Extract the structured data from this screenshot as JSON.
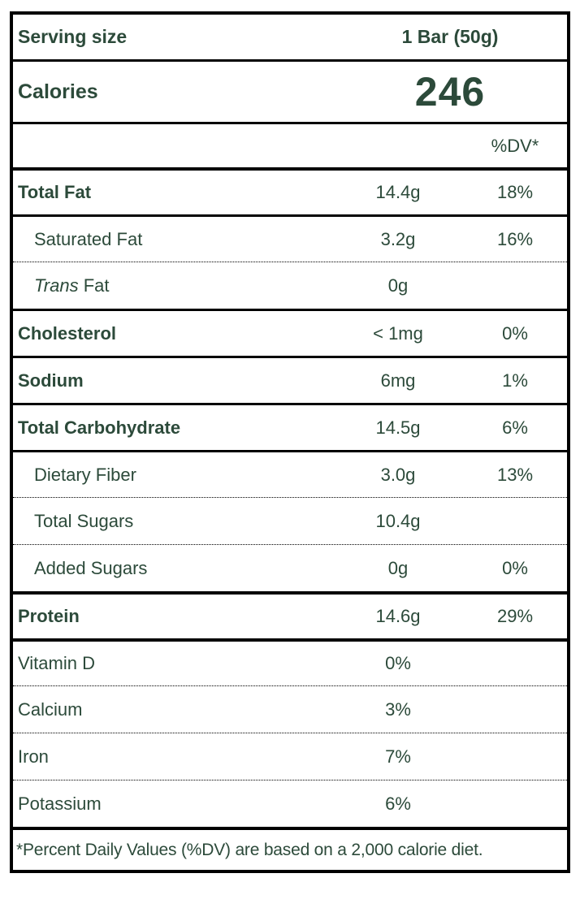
{
  "colors": {
    "text_green": "#2c4a3a",
    "line_black": "#000000",
    "background": "#ffffff"
  },
  "serving": {
    "label": "Serving size",
    "value": "1 Bar (50g)"
  },
  "calories": {
    "label": "Calories",
    "value": "246"
  },
  "dv_header": "%DV*",
  "rows": [
    {
      "label": "Total Fat",
      "amount": "14.4g",
      "dv": "18%"
    },
    {
      "label": "Saturated Fat",
      "amount": "3.2g",
      "dv": "16%"
    },
    {
      "label_italic": "Trans",
      "label_rest": " Fat",
      "amount": "0g",
      "dv": ""
    },
    {
      "label": "Cholesterol",
      "amount": "< 1mg",
      "dv": "0%"
    },
    {
      "label": "Sodium",
      "amount": "6mg",
      "dv": "1%"
    },
    {
      "label": "Total Carbohydrate",
      "amount": "14.5g",
      "dv": "6%"
    },
    {
      "label": "Dietary Fiber",
      "amount": "3.0g",
      "dv": "13%"
    },
    {
      "label": "Total Sugars",
      "amount": "10.4g",
      "dv": ""
    },
    {
      "label": "Added Sugars",
      "amount": "0g",
      "dv": "0%"
    },
    {
      "label": "Protein",
      "amount": "14.6g",
      "dv": "29%"
    },
    {
      "label": "Vitamin D",
      "amount": "0%",
      "dv": ""
    },
    {
      "label": "Calcium",
      "amount": "3%",
      "dv": ""
    },
    {
      "label": "Iron",
      "amount": "7%",
      "dv": ""
    },
    {
      "label": "Potassium",
      "amount": "6%",
      "dv": ""
    }
  ],
  "footnote": "*Percent Daily Values (%DV) are based on a 2,000 calorie diet."
}
